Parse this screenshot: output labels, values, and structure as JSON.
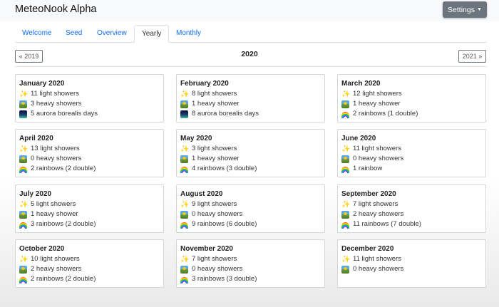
{
  "app": {
    "brand": "MeteoNook Alpha",
    "settings_label": "Settings"
  },
  "tabs": [
    {
      "label": "Welcome",
      "active": false
    },
    {
      "label": "Seed",
      "active": false
    },
    {
      "label": "Overview",
      "active": false
    },
    {
      "label": "Yearly",
      "active": true
    },
    {
      "label": "Monthly",
      "active": false
    }
  ],
  "year_nav": {
    "prev_label": "« 2019",
    "current": "2020",
    "next_label": "2021 »"
  },
  "icons": {
    "light": "sparkles-icon",
    "heavy": "meteor-shower-icon",
    "aurora": "aurora-icon",
    "rainbow": "rainbow-icon"
  },
  "months": [
    {
      "title": "January 2020",
      "stats": [
        {
          "type": "light",
          "text": "11 light showers"
        },
        {
          "type": "heavy",
          "text": "3 heavy showers"
        },
        {
          "type": "aurora",
          "text": "5 aurora borealis days"
        }
      ]
    },
    {
      "title": "February 2020",
      "stats": [
        {
          "type": "light",
          "text": "8 light showers"
        },
        {
          "type": "heavy",
          "text": "1 heavy shower"
        },
        {
          "type": "aurora",
          "text": "8 aurora borealis days"
        }
      ]
    },
    {
      "title": "March 2020",
      "stats": [
        {
          "type": "light",
          "text": "12 light showers"
        },
        {
          "type": "heavy",
          "text": "1 heavy shower"
        },
        {
          "type": "rainbow",
          "text": "2 rainbows (1 double)"
        }
      ]
    },
    {
      "title": "April 2020",
      "stats": [
        {
          "type": "light",
          "text": "13 light showers"
        },
        {
          "type": "heavy",
          "text": "0 heavy showers"
        },
        {
          "type": "rainbow",
          "text": "2 rainbows (2 double)"
        }
      ]
    },
    {
      "title": "May 2020",
      "stats": [
        {
          "type": "light",
          "text": "3 light showers"
        },
        {
          "type": "heavy",
          "text": "1 heavy shower"
        },
        {
          "type": "rainbow",
          "text": "4 rainbows (3 double)"
        }
      ]
    },
    {
      "title": "June 2020",
      "stats": [
        {
          "type": "light",
          "text": "11 light showers"
        },
        {
          "type": "heavy",
          "text": "0 heavy showers"
        },
        {
          "type": "rainbow",
          "text": "1 rainbow"
        }
      ]
    },
    {
      "title": "July 2020",
      "stats": [
        {
          "type": "light",
          "text": "5 light showers"
        },
        {
          "type": "heavy",
          "text": "1 heavy shower"
        },
        {
          "type": "rainbow",
          "text": "3 rainbows (2 double)"
        }
      ]
    },
    {
      "title": "August 2020",
      "stats": [
        {
          "type": "light",
          "text": "9 light showers"
        },
        {
          "type": "heavy",
          "text": "0 heavy showers"
        },
        {
          "type": "rainbow",
          "text": "9 rainbows (6 double)"
        }
      ]
    },
    {
      "title": "September 2020",
      "stats": [
        {
          "type": "light",
          "text": "7 light showers"
        },
        {
          "type": "heavy",
          "text": "2 heavy showers"
        },
        {
          "type": "rainbow",
          "text": "11 rainbows (7 double)"
        }
      ]
    },
    {
      "title": "October 2020",
      "stats": [
        {
          "type": "light",
          "text": "10 light showers"
        },
        {
          "type": "heavy",
          "text": "2 heavy showers"
        },
        {
          "type": "rainbow",
          "text": "2 rainbows (2 double)"
        }
      ]
    },
    {
      "title": "November 2020",
      "stats": [
        {
          "type": "light",
          "text": "7 light showers"
        },
        {
          "type": "heavy",
          "text": "0 heavy showers"
        },
        {
          "type": "rainbow",
          "text": "3 rainbows (3 double)"
        }
      ]
    },
    {
      "title": "December 2020",
      "stats": [
        {
          "type": "light",
          "text": "11 light showers"
        },
        {
          "type": "heavy",
          "text": "0 heavy showers"
        }
      ]
    }
  ]
}
